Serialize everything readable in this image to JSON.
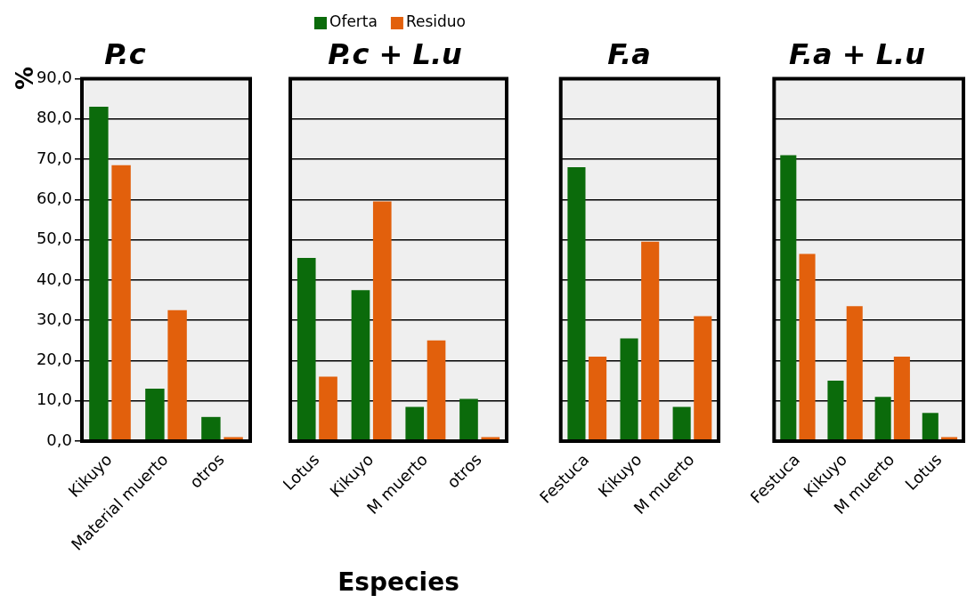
{
  "chart_data": [
    {
      "type": "bar",
      "title": "P.c",
      "ylabel": "%",
      "categories": [
        "Kikuyo",
        "Material muerto",
        "otros"
      ],
      "series": [
        {
          "color": "#0b6b0b",
          "values": [
            83,
            13,
            6
          ]
        },
        {
          "color": "#e2600c",
          "values": [
            68.5,
            32.5,
            1
          ]
        }
      ],
      "ylim": [
        0,
        90
      ],
      "yticks": [
        {
          "value": 0,
          "label": "0,0"
        },
        {
          "value": 10,
          "label": "10,0"
        },
        {
          "value": 20,
          "label": "20,0"
        },
        {
          "value": 30,
          "label": "30,0"
        },
        {
          "value": 40,
          "label": "40,0"
        },
        {
          "value": 50,
          "label": "50,0"
        },
        {
          "value": 60,
          "label": "60,0"
        },
        {
          "value": 70,
          "label": "70,0"
        },
        {
          "value": 80,
          "label": "80,0"
        },
        {
          "value": 90,
          "label": "90,0"
        }
      ],
      "grid": "y"
    },
    {
      "type": "bar",
      "title": "P.c + L.u",
      "xlabel": "Especies",
      "categories": [
        "Lotus",
        "Kikuyo",
        "M muerto",
        "otros"
      ],
      "series": [
        {
          "name": "Oferta",
          "color": "#0b6b0b",
          "values": [
            45.5,
            37.5,
            8.5,
            10.5
          ]
        },
        {
          "name": "Residuo",
          "color": "#e2600c",
          "values": [
            16,
            59.5,
            25,
            1
          ]
        }
      ],
      "ylim": [
        0,
        90
      ],
      "grid": "y",
      "legend": "top",
      "tick_labels": "x"
    },
    {
      "type": "bar",
      "title": "F.a",
      "categories": [
        "Festuca",
        "Kikuyo",
        "M muerto"
      ],
      "series": [
        {
          "color": "#0b6b0b",
          "values": [
            68,
            25.5,
            8.5
          ]
        },
        {
          "color": "#e2600c",
          "values": [
            21,
            49.5,
            31
          ]
        }
      ],
      "ylim": [
        0,
        90
      ],
      "grid": "y",
      "tick_labels": "x"
    },
    {
      "type": "bar",
      "title": "F.a + L.u",
      "categories": [
        "Festuca",
        "Kikuyo",
        "M muerto",
        "Lotus"
      ],
      "series": [
        {
          "color": "#0b6b0b",
          "values": [
            71,
            15,
            11,
            7
          ]
        },
        {
          "color": "#e2600c",
          "values": [
            46.5,
            33.5,
            21,
            1
          ]
        }
      ],
      "ylim": [
        0,
        90
      ],
      "grid": "y",
      "tick_labels": "x"
    }
  ]
}
